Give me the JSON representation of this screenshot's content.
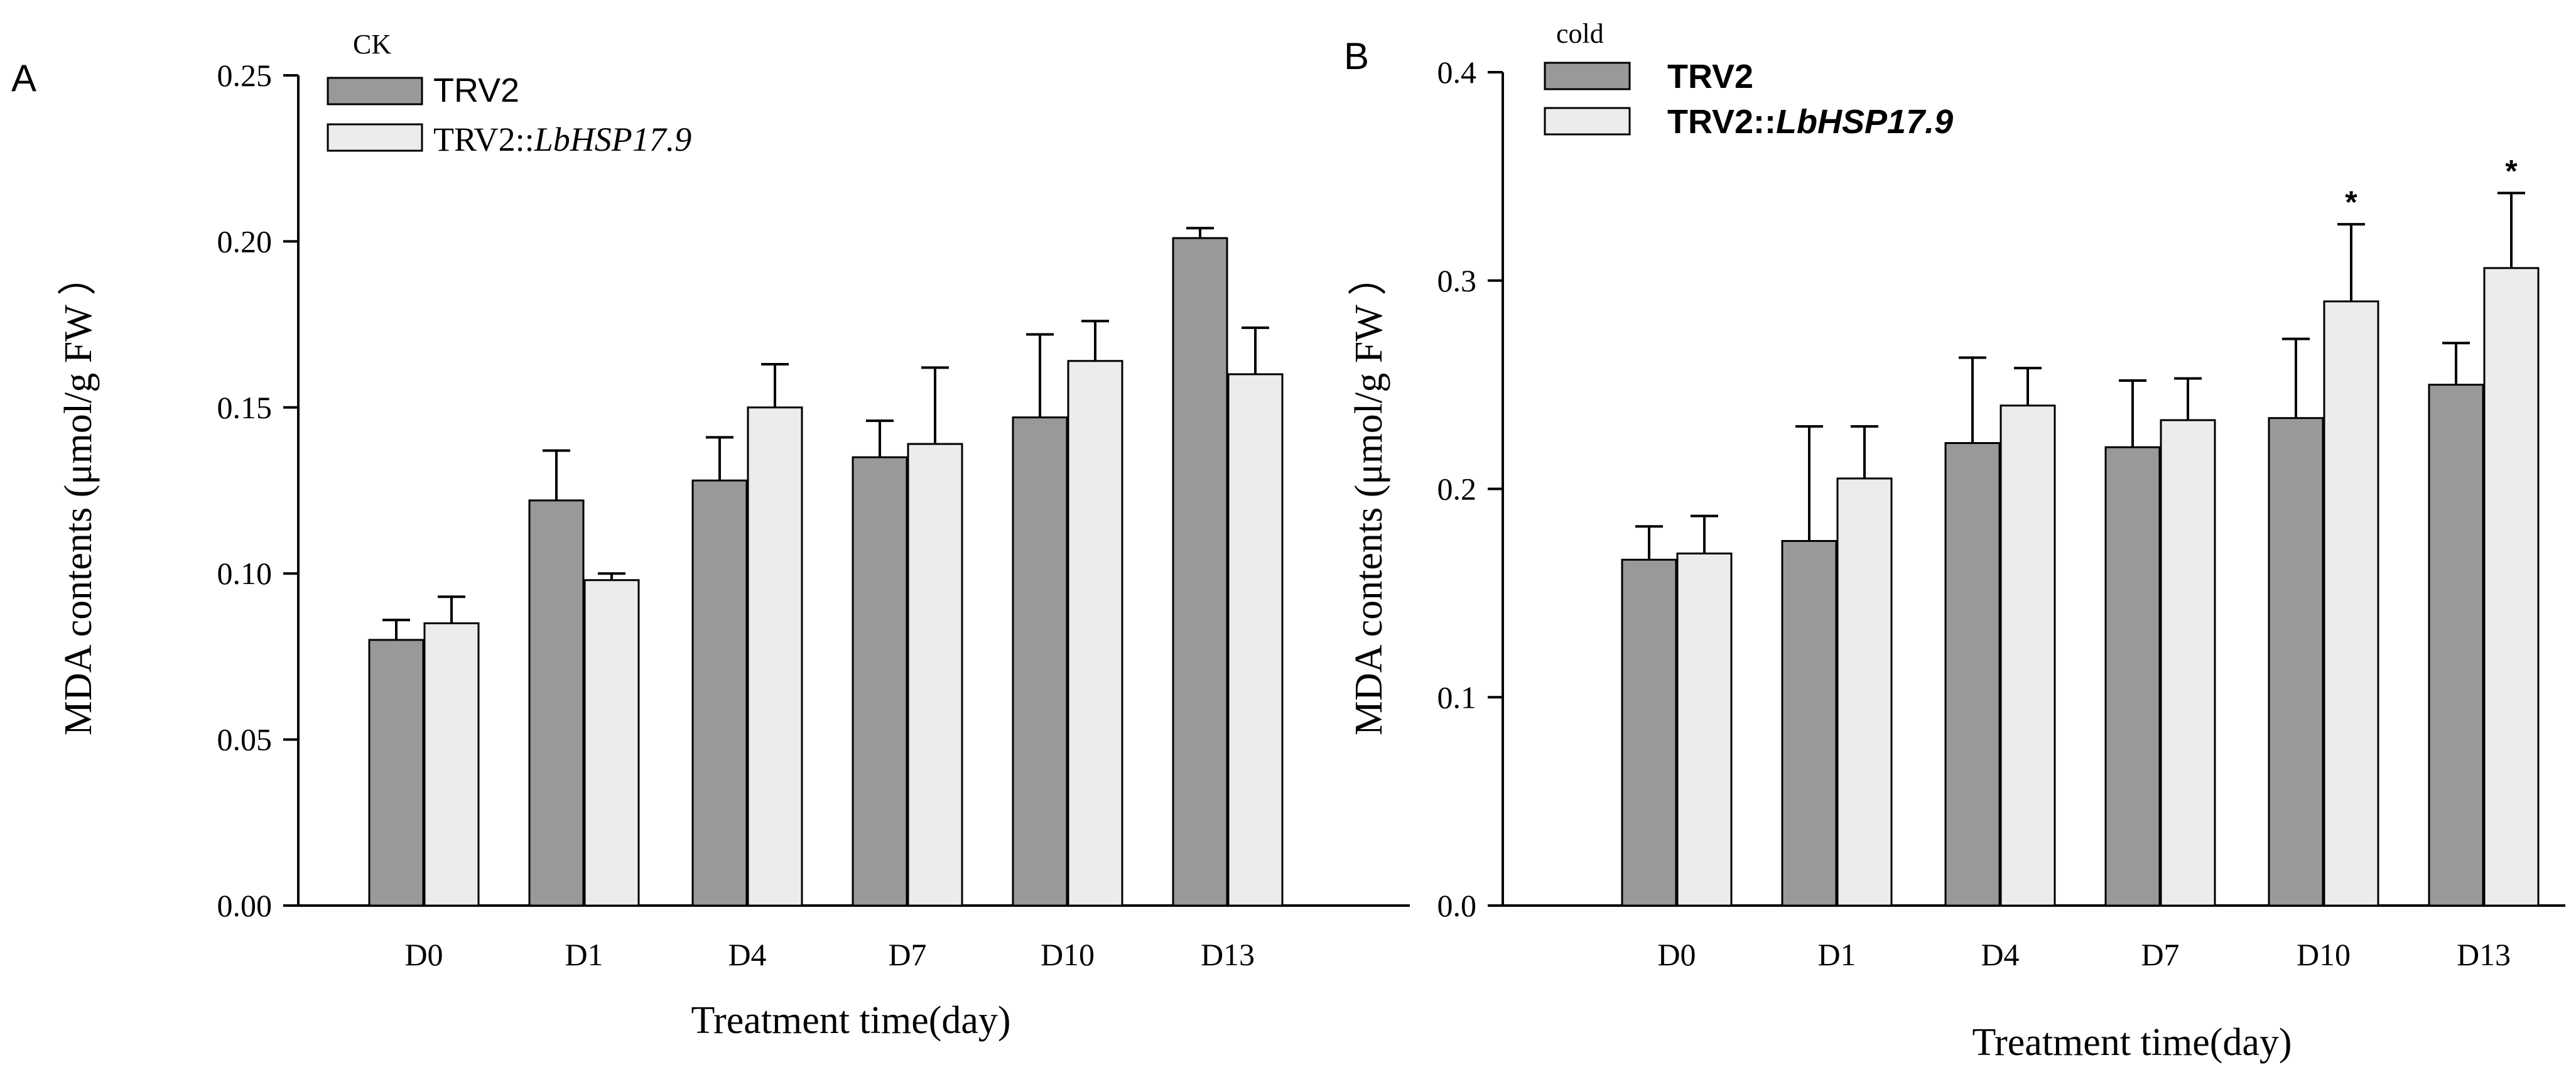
{
  "figure": {
    "colors": {
      "series1": "#999999",
      "series2": "#ececec",
      "axis": "#000000"
    }
  },
  "chart_data": [
    {
      "type": "bar",
      "panel_label": "A",
      "legend_title": "CK",
      "categories": [
        "D0",
        "D1",
        "D4",
        "D7",
        "D10",
        "D13"
      ],
      "series": [
        {
          "name": "TRV2",
          "name_prefix": "TRV2",
          "name_italic": "",
          "values": [
            0.08,
            0.122,
            0.128,
            0.135,
            0.147,
            0.201
          ],
          "errors": [
            0.006,
            0.015,
            0.013,
            0.011,
            0.025,
            0.003
          ]
        },
        {
          "name": "TRV2::LbHSP17.9",
          "name_prefix": "TRV2::",
          "name_italic": "LbHSP17.9",
          "values": [
            0.085,
            0.098,
            0.15,
            0.139,
            0.164,
            0.16
          ],
          "errors": [
            0.008,
            0.002,
            0.013,
            0.023,
            0.012,
            0.014
          ]
        }
      ],
      "significance": [
        "",
        "",
        "",
        "",
        "",
        ""
      ],
      "xlabel": "Treatment time(day)",
      "ylabel": "MDA contents (μmol/g FW ）",
      "ylim": [
        0,
        0.25
      ],
      "yticks": [
        "0.00",
        "0.05",
        "0.10",
        "0.15",
        "0.20",
        "0.25"
      ],
      "legend_position": "top-left"
    },
    {
      "type": "bar",
      "panel_label": "B",
      "legend_title": "cold",
      "categories": [
        "D0",
        "D1",
        "D4",
        "D7",
        "D10",
        "D13"
      ],
      "series": [
        {
          "name": "TRV2",
          "name_prefix": "TRV2",
          "name_italic": "",
          "values": [
            0.166,
            0.175,
            0.222,
            0.22,
            0.234,
            0.25
          ],
          "errors": [
            0.016,
            0.055,
            0.041,
            0.032,
            0.038,
            0.02
          ]
        },
        {
          "name": "TRV2::LbHSP17.9",
          "name_prefix": "TRV2::",
          "name_italic": "LbHSP17.9",
          "values": [
            0.169,
            0.205,
            0.24,
            0.233,
            0.29,
            0.306
          ],
          "errors": [
            0.018,
            0.025,
            0.018,
            0.02,
            0.037,
            0.036
          ]
        }
      ],
      "significance": [
        "",
        "",
        "",
        "",
        "*",
        "*"
      ],
      "xlabel": "Treatment time(day)",
      "ylabel": "MDA contents (μmol/g FW ）",
      "ylim": [
        0,
        0.4
      ],
      "yticks": [
        "0.0",
        "0.1",
        "0.2",
        "0.3",
        "0.4"
      ],
      "legend_position": "top-left"
    }
  ]
}
